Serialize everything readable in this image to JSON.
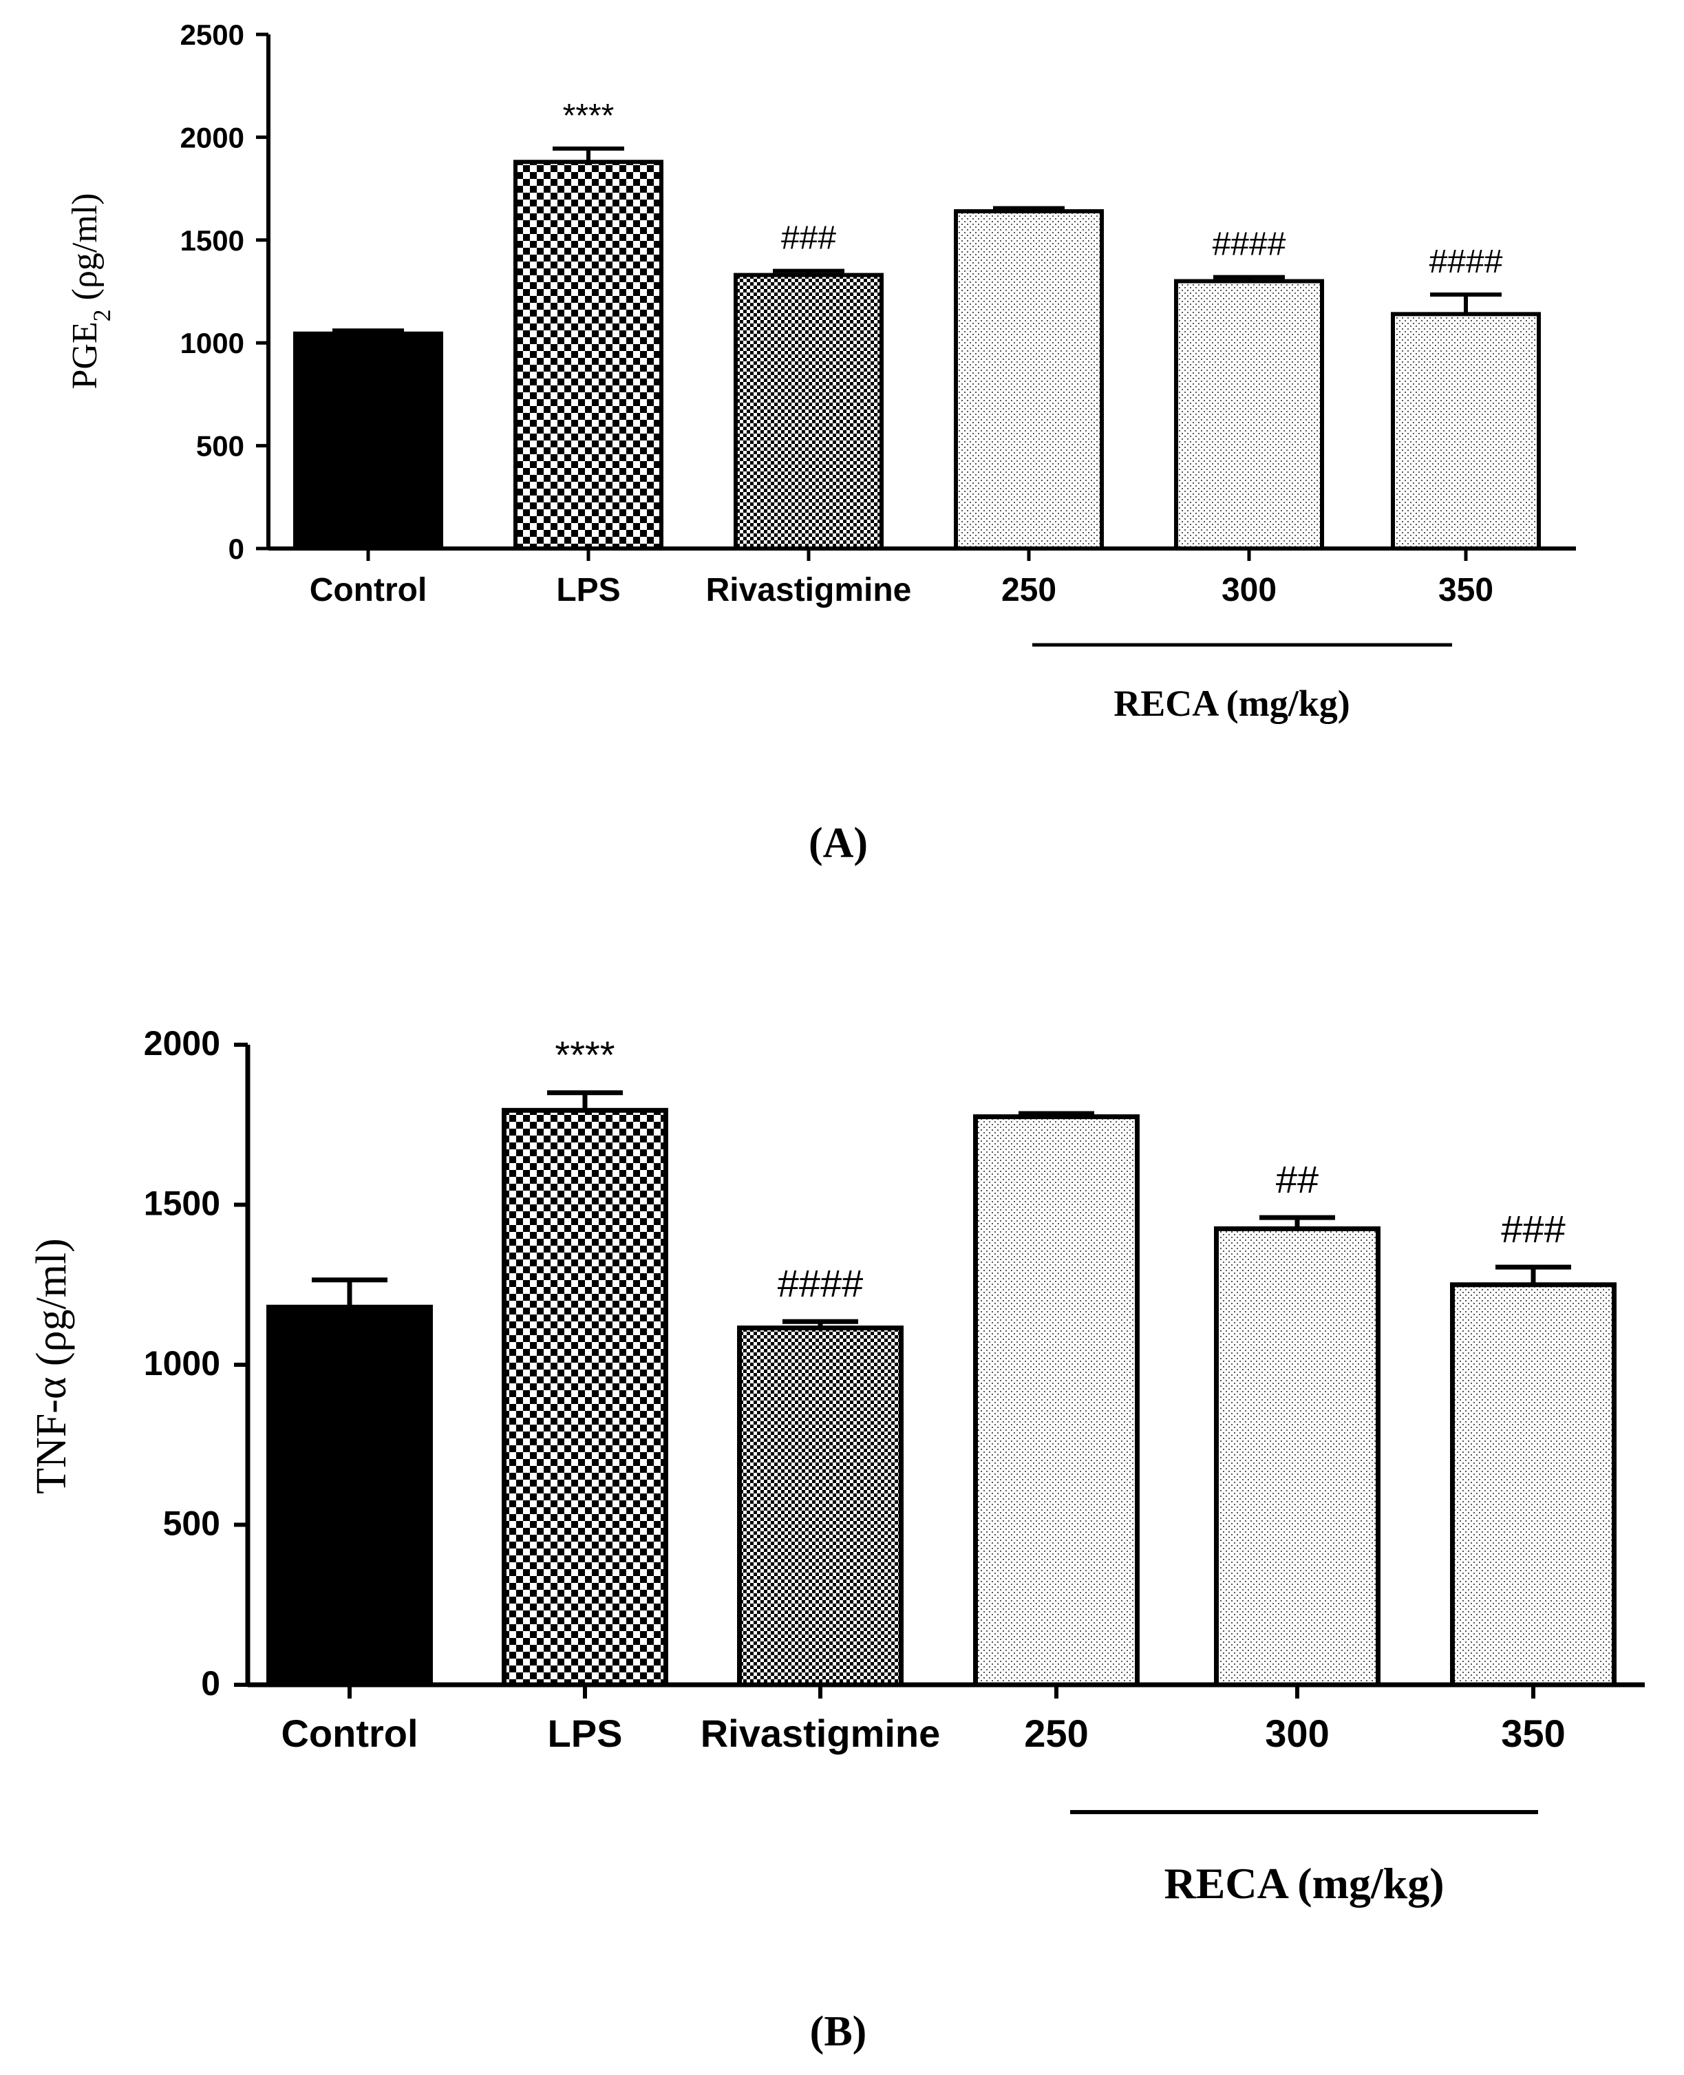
{
  "chart_data": [
    {
      "type": "bar",
      "panel_label": "(A)",
      "ylabel": "PGE",
      "ylabel_sub": "2",
      "ylabel_unit": "(ρg/ml)",
      "ylim": [
        0,
        2500
      ],
      "yticks": [
        "0",
        "500",
        "1000",
        "1500",
        "2000",
        "2500"
      ],
      "categories": [
        "Control",
        "LPS",
        "Rivastigmine",
        "250",
        "300",
        "350"
      ],
      "values": [
        1045,
        1880,
        1330,
        1640,
        1300,
        1140
      ],
      "errors": [
        15,
        65,
        20,
        15,
        20,
        95
      ],
      "annotations": [
        "",
        "****",
        "###",
        "",
        "####",
        "####"
      ],
      "patterns": [
        "solid",
        "checker",
        "fine-checker",
        "dots",
        "dots",
        "dots"
      ],
      "group_label": "RECA (mg/kg)"
    },
    {
      "type": "bar",
      "panel_label": "(B)",
      "ylabel": "TNF-α",
      "ylabel_unit": "(ρg/ml)",
      "ylim": [
        0,
        2000
      ],
      "yticks": [
        "0",
        "500",
        "1000",
        "1500",
        "2000"
      ],
      "categories": [
        "Control",
        "LPS",
        "Rivastigmine",
        "250",
        "300",
        "350"
      ],
      "values": [
        1180,
        1795,
        1115,
        1775,
        1425,
        1250
      ],
      "errors": [
        85,
        55,
        20,
        10,
        35,
        55
      ],
      "annotations": [
        "",
        "****",
        "####",
        "",
        "##",
        "###"
      ],
      "patterns": [
        "solid",
        "checker",
        "fine-checker",
        "dots",
        "dots",
        "dots"
      ],
      "group_label": "RECA (mg/kg)"
    }
  ]
}
